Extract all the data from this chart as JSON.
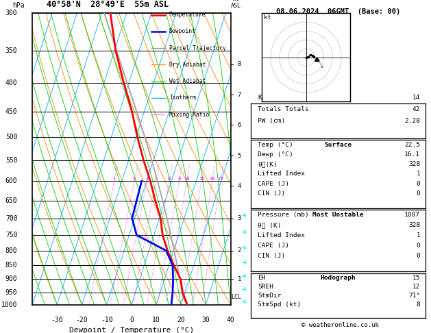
{
  "title_left": "40°58'N  28°49'E  55m ASL",
  "title_right": "08.06.2024  06GMT  (Base: 00)",
  "xlabel": "Dewpoint / Temperature (°C)",
  "ylabel_left": "hPa",
  "pressure_levels": [
    300,
    350,
    400,
    450,
    500,
    550,
    600,
    650,
    700,
    750,
    800,
    850,
    900,
    950,
    1000
  ],
  "pressure_labels": [
    300,
    350,
    400,
    450,
    500,
    550,
    600,
    650,
    700,
    750,
    800,
    850,
    900,
    950,
    1000
  ],
  "temp_range": [
    -40,
    40
  ],
  "pmin": 300,
  "pmax": 1000,
  "isotherm_color": "#00aaff",
  "dry_adiabat_color": "#ff8800",
  "wet_adiabat_color": "#00cc00",
  "mixing_ratio_color": "#ff00ff",
  "temp_profile_color": "#ff0000",
  "dewp_profile_color": "#0000ff",
  "parcel_color": "#aaaaaa",
  "legend_items": [
    "Temperature",
    "Dewpoint",
    "Parcel Trajectory",
    "Dry Adiabat",
    "Wet Adiabat",
    "Isotherm",
    "Mixing Ratio"
  ],
  "legend_colors": [
    "#ff0000",
    "#0000ff",
    "#888888",
    "#ff8800",
    "#00cc00",
    "#00aaff",
    "#ff00ff"
  ],
  "legend_styles": [
    "solid",
    "solid",
    "solid",
    "solid",
    "solid",
    "solid",
    "dotted"
  ],
  "mixing_ratio_labels": [
    1,
    2,
    3,
    4,
    6,
    8,
    10,
    15,
    20,
    25
  ],
  "mixing_ratio_label_pressure": 600,
  "km_ticks": [
    1,
    2,
    3,
    4,
    5,
    6,
    7,
    8
  ],
  "km_pressures": [
    900,
    800,
    700,
    612,
    540,
    476,
    420,
    370
  ],
  "lcl_pressure": 968,
  "lcl_label": "LCL",
  "temp_p": [
    1000,
    950,
    900,
    850,
    800,
    750,
    700,
    650,
    600,
    550,
    500,
    450,
    400,
    350,
    300
  ],
  "temp_T": [
    22.5,
    19.0,
    16.5,
    12.0,
    7.5,
    3.5,
    0.5,
    -4.0,
    -8.5,
    -14.0,
    -19.5,
    -25.0,
    -32.0,
    -39.5,
    -46.5
  ],
  "dewp_p": [
    1000,
    950,
    900,
    850,
    800,
    750,
    700,
    650,
    600
  ],
  "dewp_T": [
    16.1,
    15.0,
    13.5,
    11.5,
    7.0,
    -7.0,
    -11.0,
    -11.5,
    -12.0
  ],
  "stats_K": 14,
  "stats_TT": 42,
  "stats_PW": 2.28,
  "surf_temp": 22.5,
  "surf_dewp": 16.1,
  "surf_theta_e": 328,
  "surf_li": 1,
  "surf_cape": 0,
  "surf_cin": 0,
  "mu_pressure": 1007,
  "mu_theta_e": 328,
  "mu_li": 1,
  "mu_cape": 0,
  "mu_cin": 0,
  "hodo_EH": 15,
  "hodo_SREH": 12,
  "hodo_StmDir": "71°",
  "hodo_StmSpd": 8,
  "copyright": "© weatheronline.co.uk",
  "skew": 38.0,
  "wind_cyan_p": [
    1000,
    950,
    900,
    850,
    800,
    750,
    700
  ]
}
